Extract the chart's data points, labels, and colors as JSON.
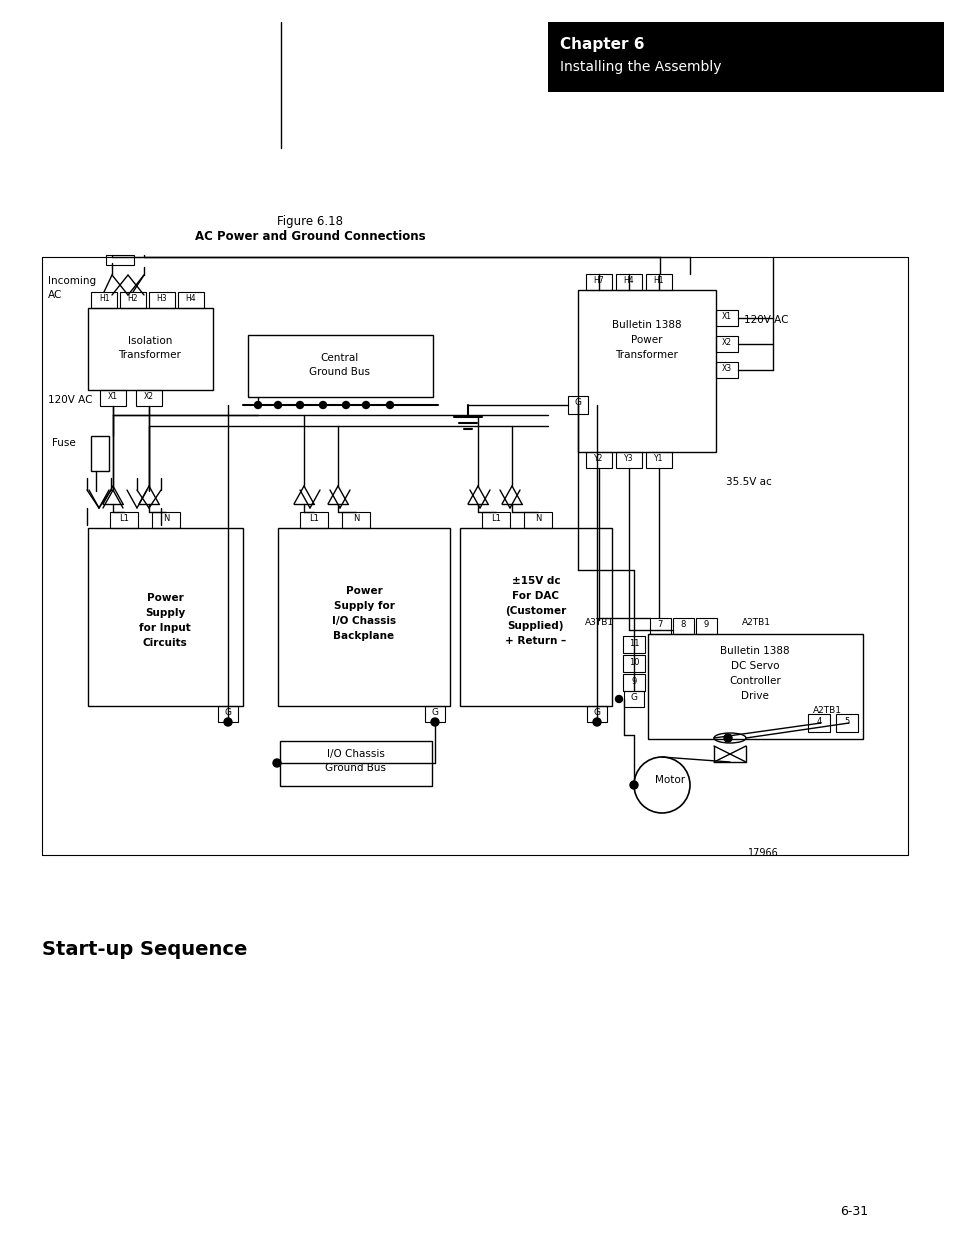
{
  "page_bg": "#ffffff",
  "header_bg": "#000000",
  "header_text_line1": "Chapter 6",
  "header_text_line2": "Installing the Assembly",
  "header_text_color": "#ffffff",
  "figure_title_line1": "Figure 6.18",
  "figure_title_line2": "AC Power and Ground Connections",
  "startup_text": "Start-up Sequence",
  "page_number": "6-31",
  "fig_ref": "17966"
}
